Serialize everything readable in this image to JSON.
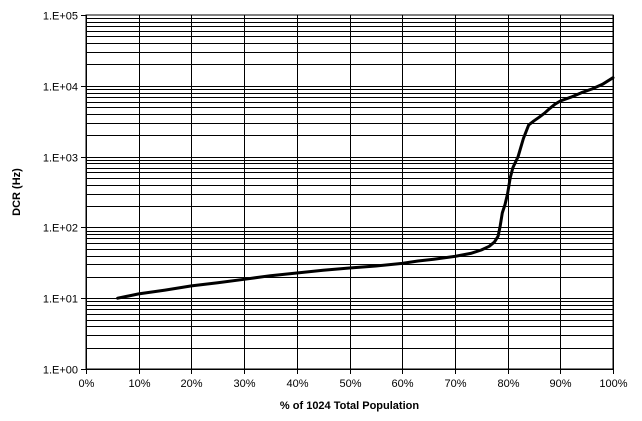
{
  "chart_data": {
    "type": "line",
    "title": "",
    "xlabel": "% of 1024 Total Population",
    "ylabel": "DCR (Hz)",
    "x_scale": "linear",
    "y_scale": "log",
    "xlim": [
      0,
      100
    ],
    "ylim": [
      1,
      100000
    ],
    "x_ticks": [
      0,
      10,
      20,
      30,
      40,
      50,
      60,
      70,
      80,
      90,
      100
    ],
    "x_tick_labels": [
      "0%",
      "10%",
      "20%",
      "30%",
      "40%",
      "50%",
      "60%",
      "70%",
      "80%",
      "90%",
      "100%"
    ],
    "y_ticks": [
      1,
      10,
      100,
      1000,
      10000,
      100000
    ],
    "y_tick_labels": [
      "1.E+00",
      "1.E+01",
      "1.E+02",
      "1.E+03",
      "1.E+04",
      "1.E+05"
    ],
    "grid": true,
    "legend": "none",
    "series": [
      {
        "color": "#000000",
        "x": [
          6,
          10,
          15,
          20,
          25,
          30,
          35,
          40,
          45,
          50,
          55,
          60,
          63,
          66,
          70,
          73,
          75,
          76.5,
          77.5,
          78.2,
          78.6,
          79,
          79.5,
          80,
          80.5,
          81,
          82,
          83,
          84,
          85,
          86,
          87,
          88,
          89,
          90,
          92,
          94,
          96,
          98,
          100
        ],
        "y": [
          10,
          11.5,
          13,
          14.9,
          16.5,
          18.5,
          20.8,
          22.7,
          24.8,
          26.7,
          28.5,
          31,
          33.5,
          35.5,
          39,
          43,
          48,
          54,
          62,
          75,
          105,
          160,
          210,
          300,
          500,
          700,
          1000,
          1800,
          2800,
          3200,
          3600,
          4100,
          4800,
          5500,
          6100,
          6900,
          8000,
          9000,
          10500,
          13000
        ]
      }
    ]
  }
}
